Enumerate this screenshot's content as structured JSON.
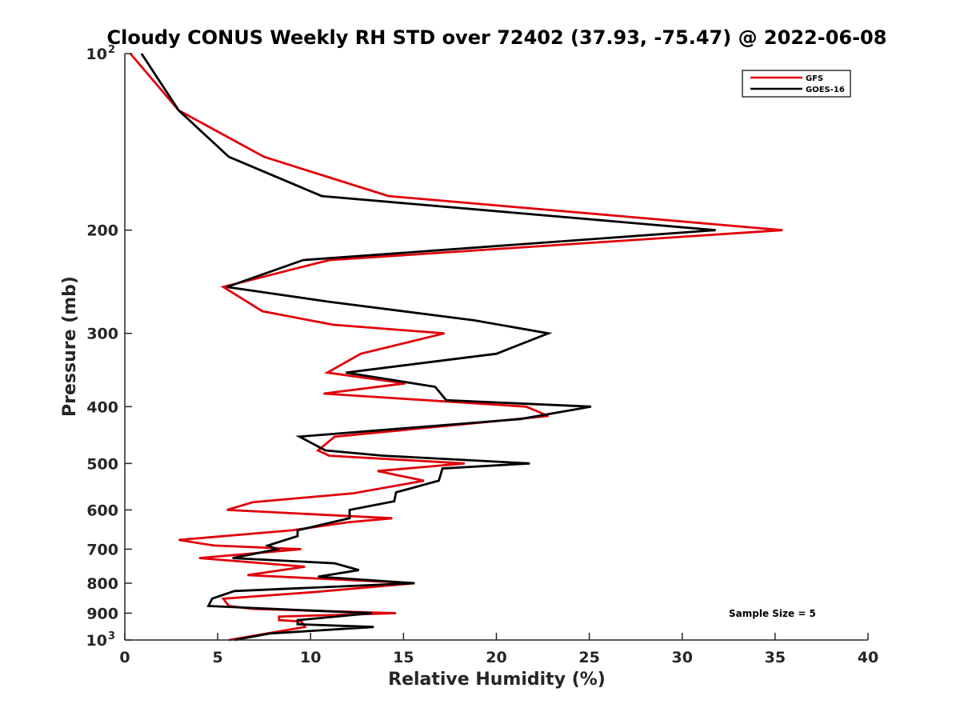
{
  "chart_data": {
    "type": "line",
    "title": "Cloudy CONUS Weekly RH STD over 72402 (37.93, -75.47) @ 2022-06-08",
    "xlabel": "Relative Humidity (%)",
    "ylabel": "Pressure (mb)",
    "xlim": [
      0,
      40
    ],
    "ylim": [
      100,
      1000
    ],
    "y_scale": "log",
    "y_direction": "reversed",
    "x_ticks": [
      0,
      5,
      10,
      15,
      20,
      25,
      30,
      35,
      40
    ],
    "x_tick_labels": [
      "0",
      "5",
      "10",
      "15",
      "20",
      "25",
      "30",
      "35",
      "40"
    ],
    "y_ticks": [
      100,
      200,
      300,
      400,
      500,
      600,
      700,
      800,
      900,
      1000
    ],
    "y_tick_labels": [
      {
        "base": "10",
        "exp": "2"
      },
      {
        "base": "200"
      },
      {
        "base": "300"
      },
      {
        "base": "400"
      },
      {
        "base": "500"
      },
      {
        "base": "600"
      },
      {
        "base": "700"
      },
      {
        "base": "800"
      },
      {
        "base": "900"
      },
      {
        "base": "10",
        "exp": "3"
      }
    ],
    "grid": false,
    "legend_position": "top-right",
    "annotation": "Sample Size = 5",
    "series": [
      {
        "name": "GFS",
        "color": "#e0000b",
        "points": [
          [
            0.3,
            100
          ],
          [
            2.9,
            125
          ],
          [
            7.5,
            150
          ],
          [
            14.2,
            175
          ],
          [
            35.4,
            200
          ],
          [
            11.0,
            225
          ],
          [
            5.3,
            250
          ],
          [
            7.4,
            275
          ],
          [
            11.2,
            290
          ],
          [
            17.2,
            300
          ],
          [
            12.7,
            325
          ],
          [
            10.9,
            350
          ],
          [
            15.1,
            365
          ],
          [
            10.7,
            380
          ],
          [
            21.6,
            400
          ],
          [
            22.8,
            415
          ],
          [
            11.3,
            450
          ],
          [
            10.4,
            475
          ],
          [
            11.0,
            485
          ],
          [
            18.3,
            500
          ],
          [
            13.6,
            515
          ],
          [
            16.1,
            535
          ],
          [
            12.3,
            562
          ],
          [
            6.9,
            582
          ],
          [
            5.5,
            600
          ],
          [
            14.4,
            620
          ],
          [
            12.0,
            630
          ],
          [
            9.0,
            650
          ],
          [
            2.9,
            675
          ],
          [
            4.8,
            690
          ],
          [
            9.5,
            700
          ],
          [
            4.0,
            725
          ],
          [
            9.7,
            750
          ],
          [
            6.6,
            775
          ],
          [
            15.6,
            800
          ],
          [
            10.3,
            828
          ],
          [
            5.3,
            850
          ],
          [
            5.6,
            875
          ],
          [
            6.9,
            885
          ],
          [
            14.6,
            900
          ],
          [
            8.3,
            912
          ],
          [
            8.3,
            925
          ],
          [
            9.5,
            930
          ],
          [
            9.7,
            950
          ],
          [
            5.6,
            1000
          ]
        ]
      },
      {
        "name": "GOES-16",
        "color": "#000000",
        "points": [
          [
            0.9,
            100
          ],
          [
            2.9,
            125
          ],
          [
            5.6,
            150
          ],
          [
            10.6,
            175
          ],
          [
            31.8,
            200
          ],
          [
            9.6,
            225
          ],
          [
            5.5,
            250
          ],
          [
            11.0,
            265
          ],
          [
            18.8,
            285
          ],
          [
            22.8,
            300
          ],
          [
            20.0,
            325
          ],
          [
            11.9,
            350
          ],
          [
            16.7,
            370
          ],
          [
            17.3,
            390
          ],
          [
            25.1,
            400
          ],
          [
            21.3,
            420
          ],
          [
            9.4,
            450
          ],
          [
            10.8,
            475
          ],
          [
            13.9,
            485
          ],
          [
            21.8,
            500
          ],
          [
            17.1,
            510
          ],
          [
            16.9,
            535
          ],
          [
            14.6,
            560
          ],
          [
            14.5,
            580
          ],
          [
            12.1,
            600
          ],
          [
            12.1,
            620
          ],
          [
            9.3,
            650
          ],
          [
            9.3,
            665
          ],
          [
            7.7,
            690
          ],
          [
            8.2,
            700
          ],
          [
            5.8,
            725
          ],
          [
            11.3,
            740
          ],
          [
            12.6,
            760
          ],
          [
            10.4,
            780
          ],
          [
            15.6,
            800
          ],
          [
            5.9,
            825
          ],
          [
            4.7,
            850
          ],
          [
            4.5,
            875
          ],
          [
            13.3,
            900
          ],
          [
            9.3,
            925
          ],
          [
            9.3,
            940
          ],
          [
            13.4,
            950
          ],
          [
            7.8,
            975
          ],
          [
            5.9,
            1000
          ]
        ]
      }
    ]
  }
}
